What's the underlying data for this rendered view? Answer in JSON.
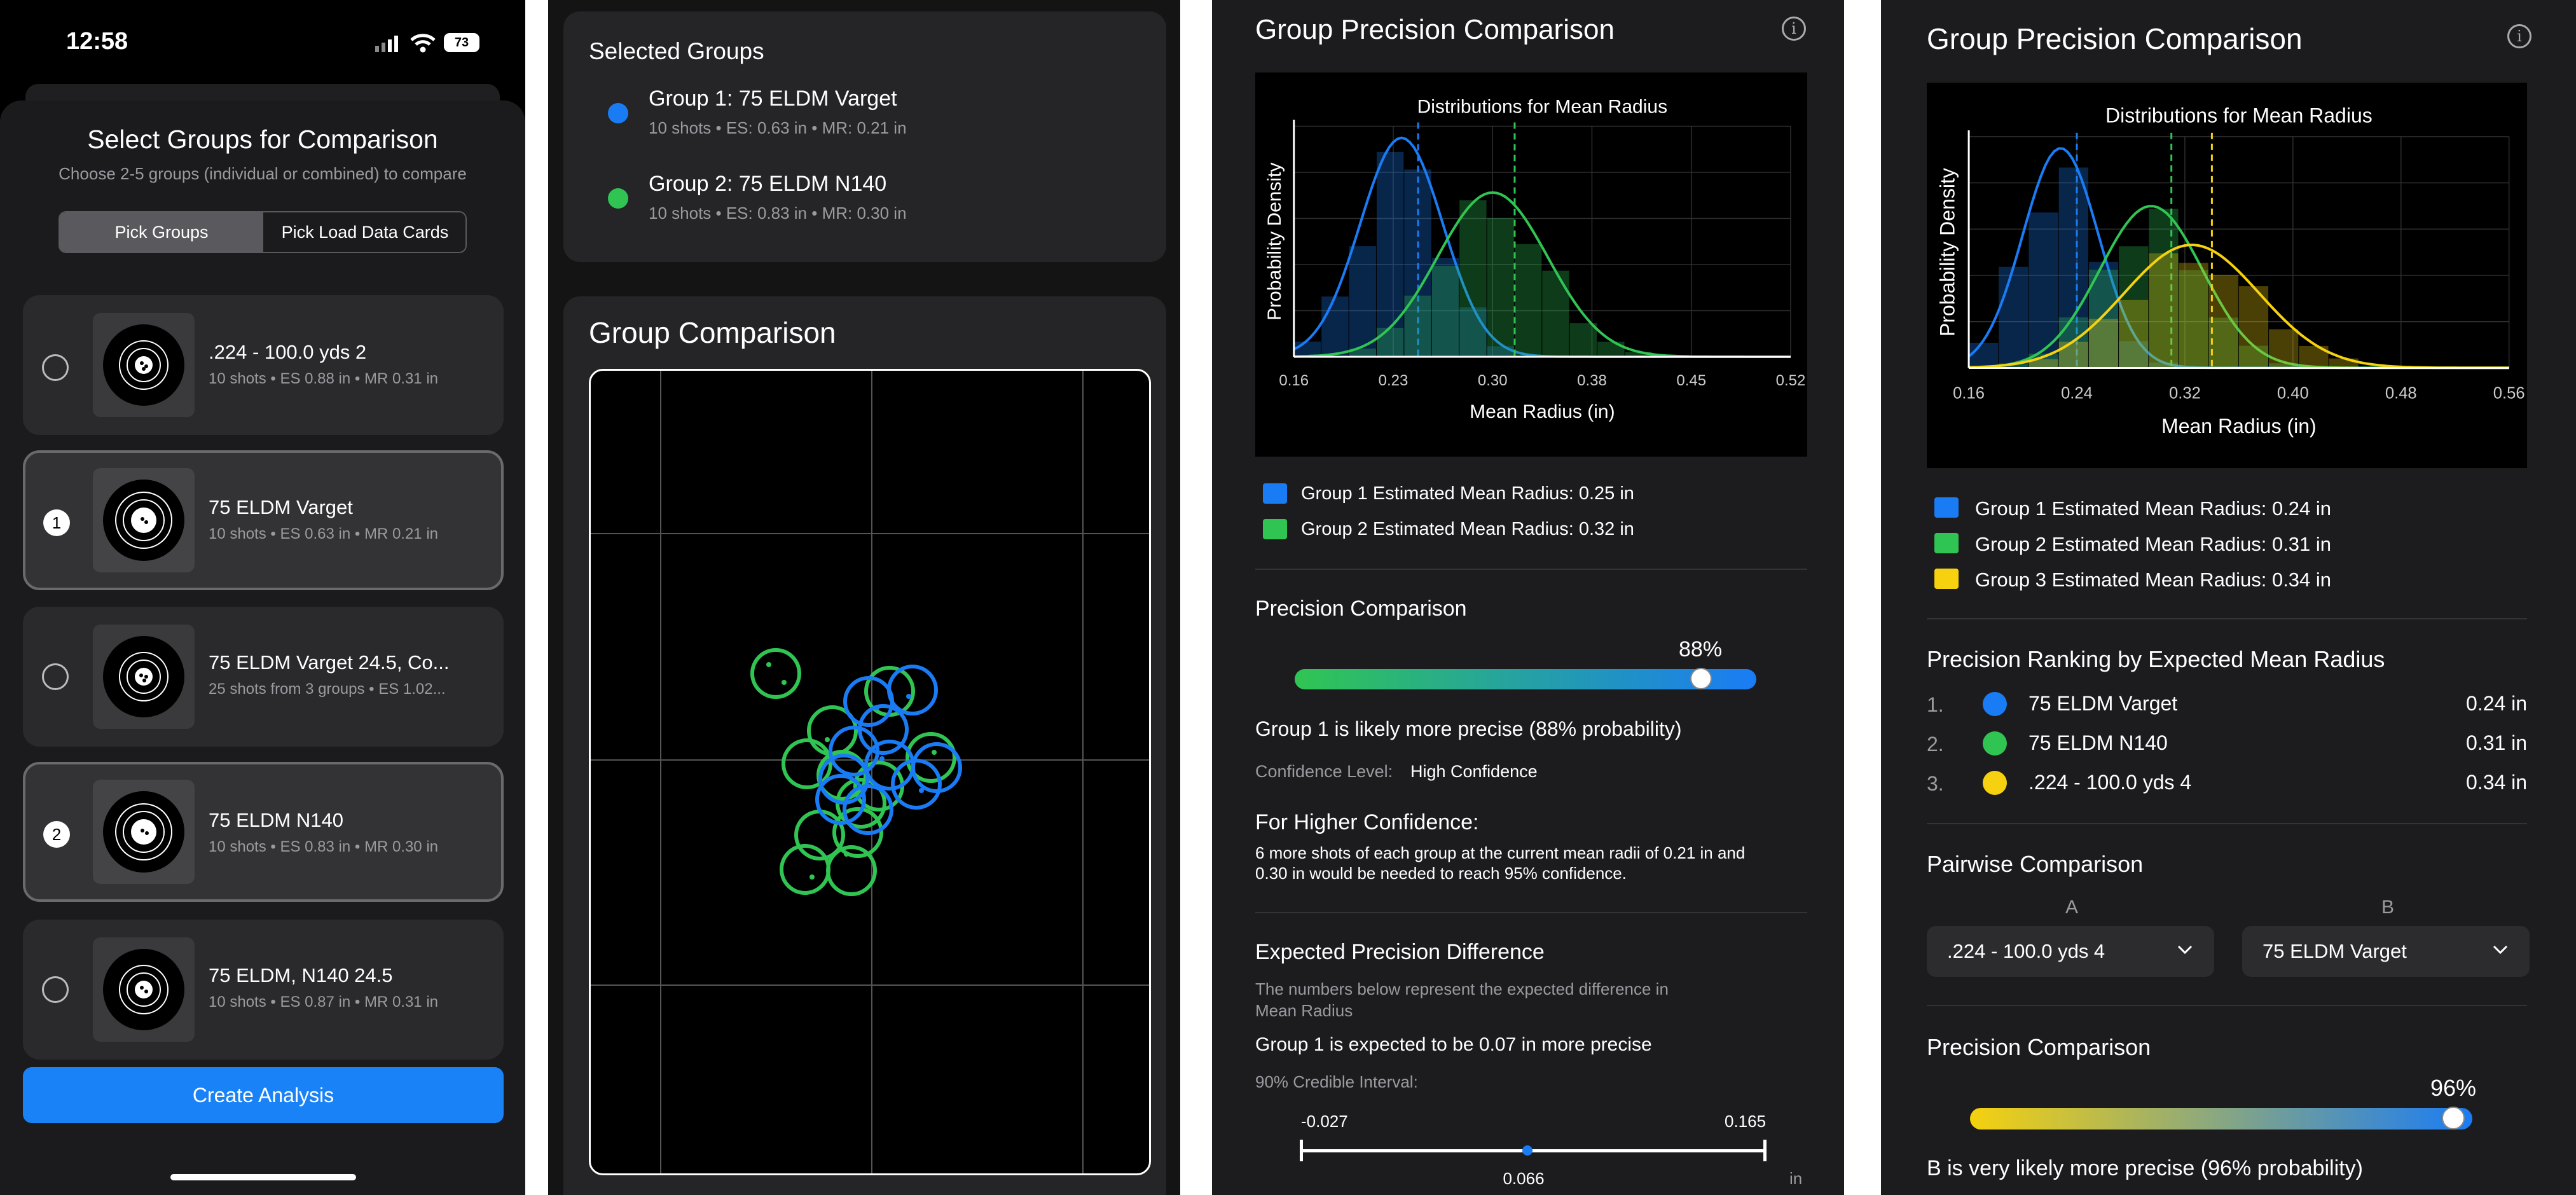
{
  "status": {
    "time": "12:58",
    "battery": "73"
  },
  "sheet": {
    "title": "Select Groups for Comparison",
    "subtitle": "Choose 2-5 groups (individual or combined) to compare",
    "tabs": [
      {
        "label": "Pick Groups",
        "selected": true
      },
      {
        "label": "Pick Load Data Cards",
        "selected": false
      }
    ],
    "groups": [
      {
        "title": ".224 - 100.0 yds 2",
        "meta": "10 shots • ES 0.88 in • MR 0.31 in",
        "badge": ""
      },
      {
        "title": "75 ELDM Varget",
        "meta": "10 shots • ES 0.63 in • MR 0.21 in",
        "badge": "1"
      },
      {
        "title": "75 ELDM Varget 24.5, Co...",
        "meta": "25 shots from 3 groups • ES 1.02...",
        "badge": ""
      },
      {
        "title": "75 ELDM N140",
        "meta": "10 shots • ES 0.83 in • MR 0.30 in",
        "badge": "2"
      },
      {
        "title": "75 ELDM, N140 24.5",
        "meta": "10 shots • ES 0.87 in • MR 0.31 in",
        "badge": ""
      }
    ],
    "create_button": "Create Analysis"
  },
  "selected": {
    "title": "Selected Groups",
    "items": [
      {
        "title": "Group 1: 75 ELDM Varget",
        "meta": "10 shots • ES: 0.63 in • MR: 0.21 in",
        "color": "#1a7cf5"
      },
      {
        "title": "Group 2: 75 ELDM N140",
        "meta": "10 shots • ES: 0.83 in • MR: 0.30 in",
        "color": "#30c553"
      }
    ],
    "comparison_title": "Group Comparison"
  },
  "analysis2": {
    "title": "Group Precision Comparison",
    "legend": [
      {
        "label": "Group 1 Estimated Mean Radius: 0.25 in",
        "color": "#1a7cf5"
      },
      {
        "label": "Group 2 Estimated Mean Radius: 0.32 in",
        "color": "#30c553"
      }
    ],
    "precision": {
      "title": "Precision Comparison",
      "percent_label": "88%",
      "percent": 88,
      "statement": "Group 1 is likely more precise (88% probability)",
      "confidence_label": "Confidence Level:",
      "confidence_value": "High Confidence"
    },
    "higher": {
      "title": "For Higher Confidence:",
      "line1": "6 more shots of each group at the current mean radii of 0.21 in and",
      "line2": "0.30 in would be needed to reach 95% confidence."
    },
    "expected": {
      "title": "Expected Precision Difference",
      "line1": "The numbers below represent the expected difference in",
      "line2": "Mean Radius",
      "statement": "Group 1 is expected to be 0.07 in more precise",
      "ci_label": "90% Credible Interval:",
      "low": "-0.027",
      "high": "0.165",
      "mid": "0.066",
      "unit": "in"
    }
  },
  "analysis3": {
    "title": "Group Precision Comparison",
    "legend": [
      {
        "label": "Group 1 Estimated Mean Radius: 0.24 in",
        "color": "#1a7cf5"
      },
      {
        "label": "Group 2 Estimated Mean Radius: 0.31 in",
        "color": "#30c553"
      },
      {
        "label": "Group 3 Estimated Mean Radius: 0.34 in",
        "color": "#f5d10f"
      }
    ],
    "ranking": {
      "title": "Precision Ranking by Expected Mean Radius",
      "items": [
        {
          "rank": "1.",
          "name": "75 ELDM Varget",
          "value": "0.24 in",
          "color": "#1a7cf5"
        },
        {
          "rank": "2.",
          "name": "75 ELDM N140",
          "value": "0.31 in",
          "color": "#30c553"
        },
        {
          "rank": "3.",
          "name": ".224 - 100.0 yds 4",
          "value": "0.34 in",
          "color": "#f5d10f"
        }
      ]
    },
    "pairwise": {
      "title": "Pairwise Comparison",
      "a_label": "A",
      "b_label": "B",
      "a_value": ".224 - 100.0 yds 4",
      "b_value": "75 ELDM Varget"
    },
    "precision": {
      "title": "Precision Comparison",
      "percent_label": "96%",
      "percent": 96,
      "statement": "B is very likely more precise (96% probability)"
    }
  },
  "chart_data": [
    {
      "type": "area",
      "title": "Distributions for Mean Radius",
      "xlabel": "Mean Radius (in)",
      "ylabel": "Probability Density",
      "x_ticks": [
        "0.16",
        "0.23",
        "0.30",
        "0.38",
        "0.45",
        "0.52"
      ],
      "xlim": [
        0.16,
        0.52
      ],
      "grid": true,
      "series": [
        {
          "mode": 0.238,
          "sd": 0.03,
          "mean_line": 0.25,
          "color": "#1a7cf5"
        },
        {
          "mode": 0.304,
          "sd": 0.04,
          "mean_line": 0.32,
          "color": "#30c553"
        }
      ]
    },
    {
      "type": "area",
      "title": "Distributions for Mean Radius",
      "xlabel": "Mean Radius (in)",
      "ylabel": "Probability Density",
      "x_ticks": [
        "0.16",
        "0.24",
        "0.32",
        "0.40",
        "0.48",
        "0.56"
      ],
      "xlim": [
        0.16,
        0.56
      ],
      "grid": true,
      "series": [
        {
          "mode": 0.228,
          "sd": 0.028,
          "mean_line": 0.24,
          "color": "#1a7cf5"
        },
        {
          "mode": 0.295,
          "sd": 0.038,
          "mean_line": 0.31,
          "color": "#30c553"
        },
        {
          "mode": 0.325,
          "sd": 0.05,
          "mean_line": 0.34,
          "color": "#f5d10f"
        }
      ]
    }
  ]
}
